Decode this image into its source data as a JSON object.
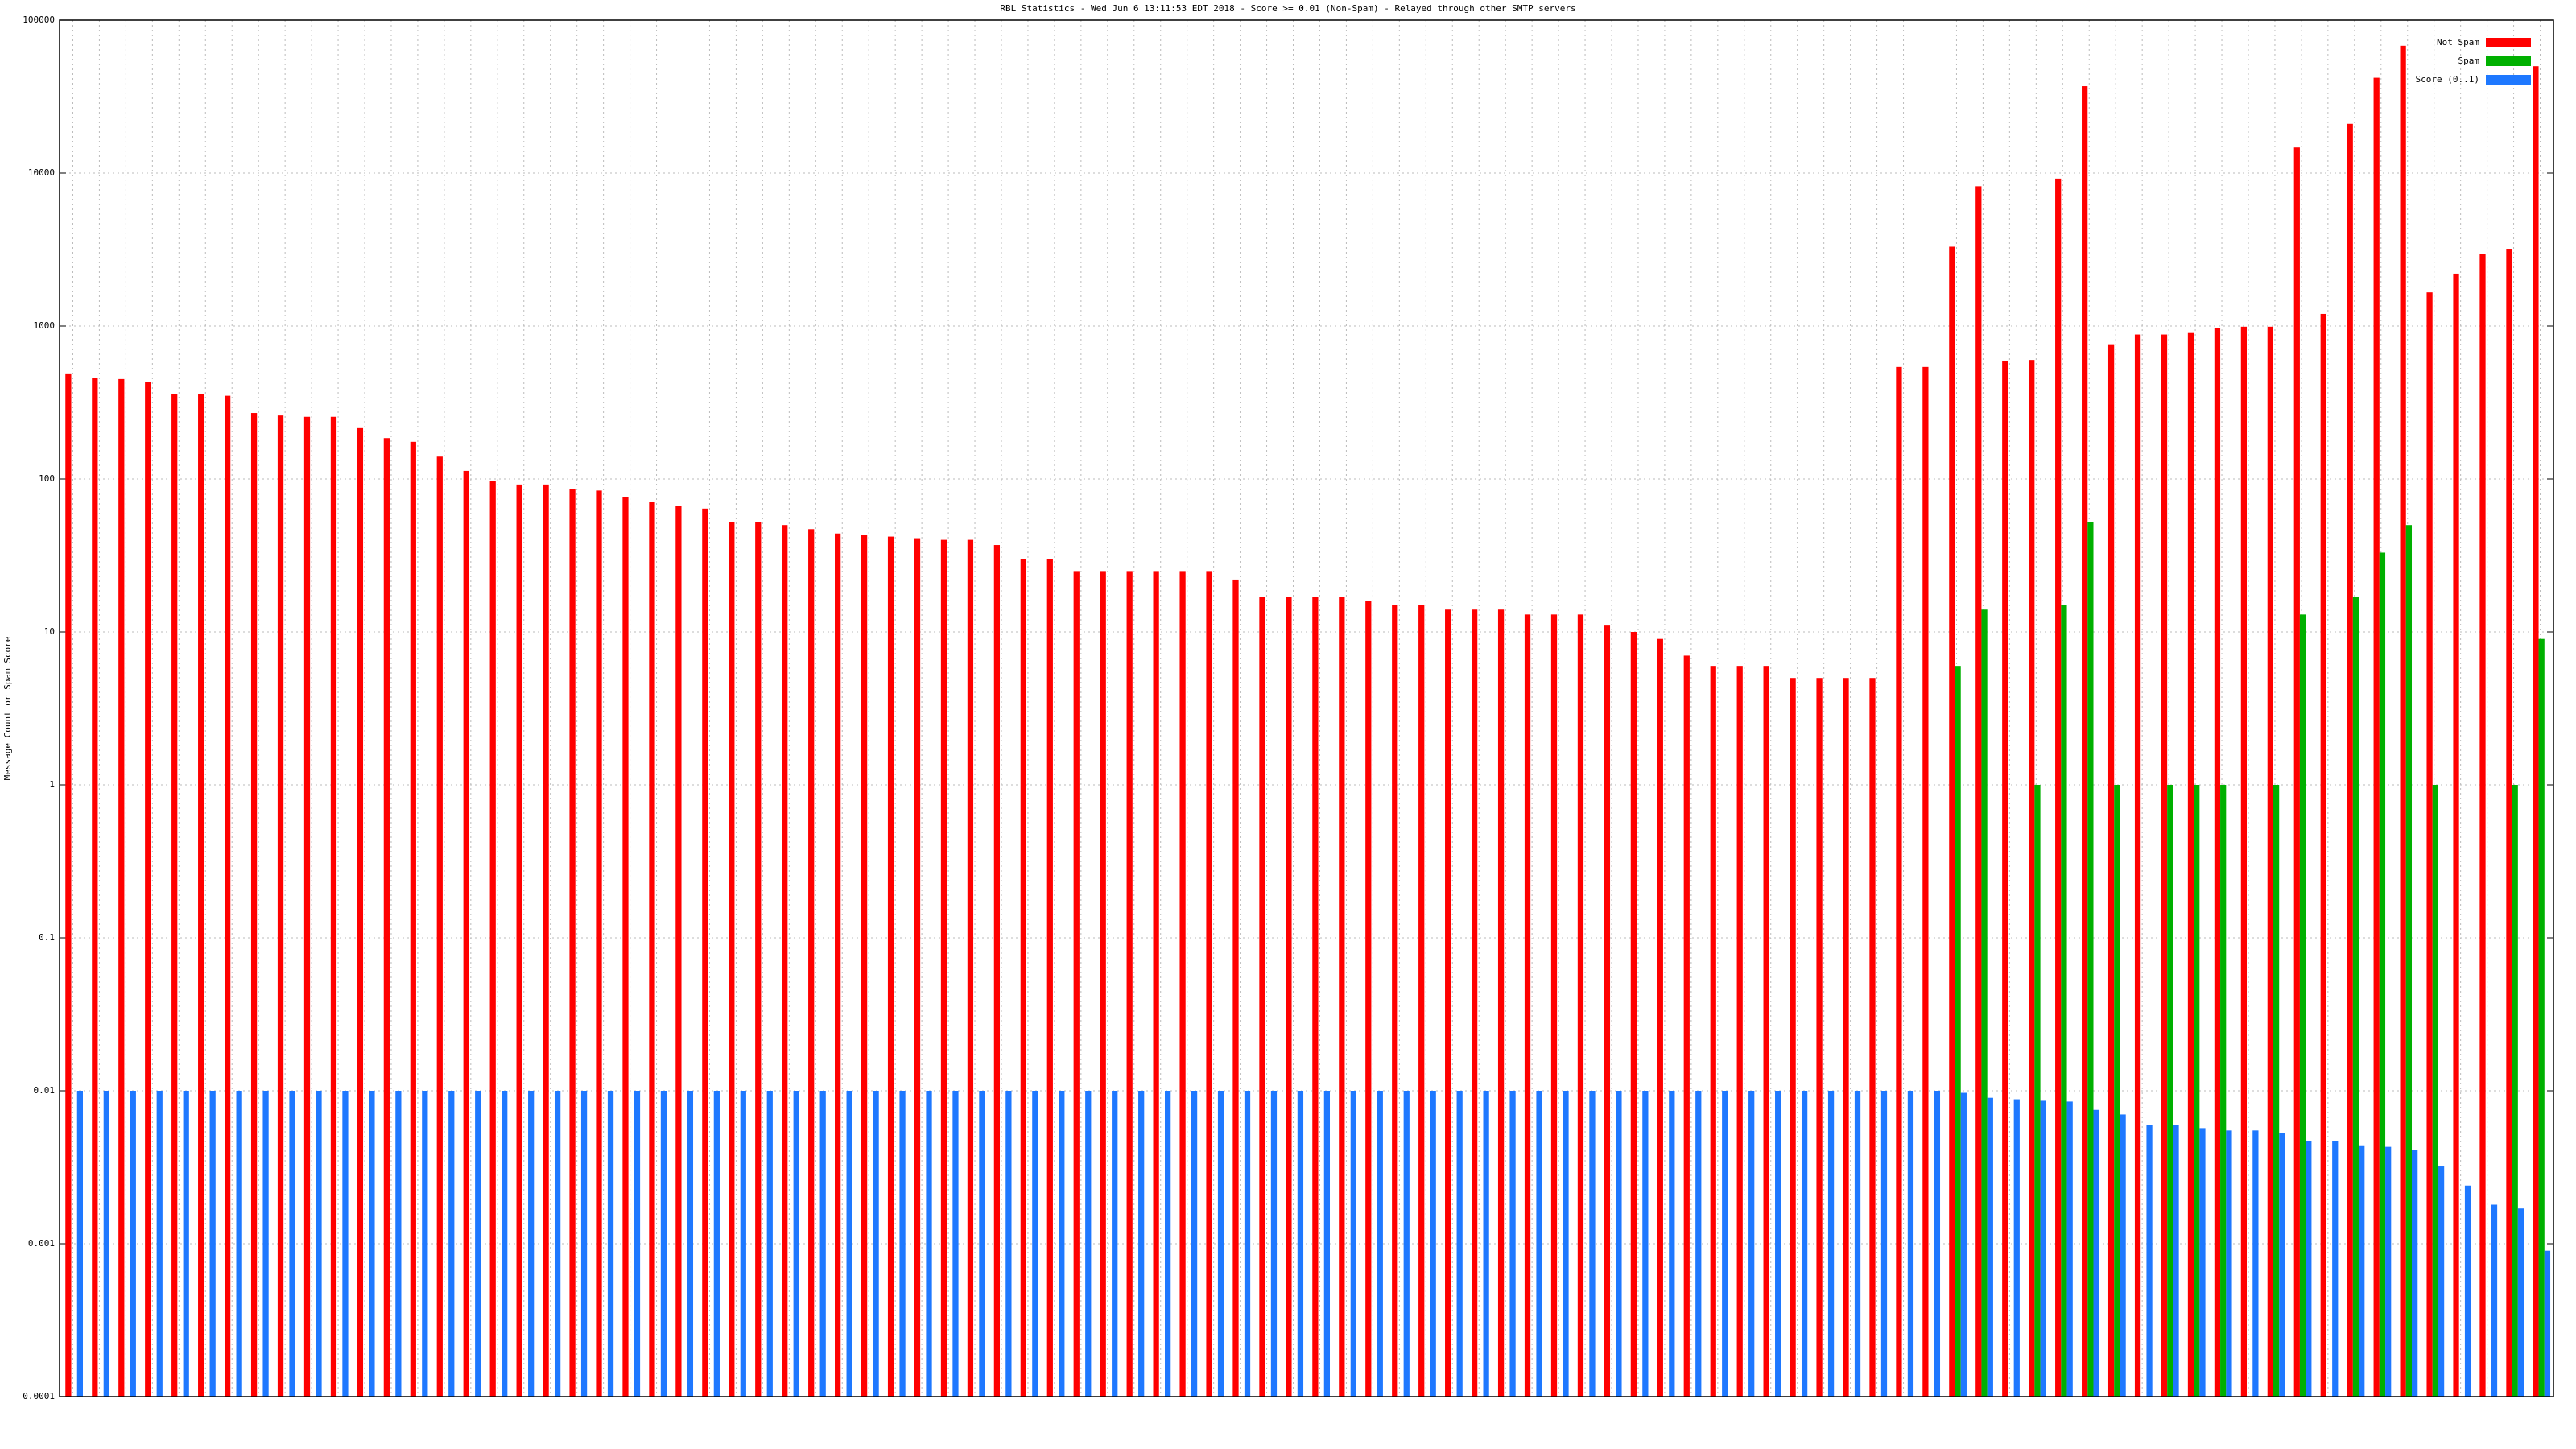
{
  "chart_data": {
    "type": "bar",
    "title": "RBL Statistics - Wed Jun 6 13:11:53 EDT 2018 - Score >= 0.01 (Non-Spam) - Relayed through other SMTP servers",
    "y_label": "Message Count or Spam Score",
    "log_scale": true,
    "grid": true,
    "legend": "top-right",
    "ylim": [
      0.0001,
      100000
    ],
    "yticks": [
      0.0001,
      0.001,
      0.01,
      0.1,
      1,
      10,
      100,
      1000,
      10000,
      100000
    ],
    "categories": [
      null,
      null,
      null,
      null,
      null,
      null,
      null,
      null,
      null,
      null,
      null,
      null,
      null,
      null,
      null,
      null,
      null,
      null,
      null,
      null,
      null,
      null,
      null,
      null,
      null,
      null,
      null,
      null,
      null,
      null,
      null,
      null,
      null,
      null,
      null,
      null,
      null,
      null,
      null,
      null,
      null,
      null,
      null,
      null,
      null,
      null,
      null,
      null,
      null,
      null,
      null,
      null,
      null,
      null,
      null,
      null,
      null,
      null,
      null,
      null,
      null,
      null,
      null,
      null,
      null,
      null,
      null,
      null,
      null,
      null,
      null,
      null,
      null,
      null,
      null,
      null,
      null,
      null,
      null,
      null,
      null,
      null,
      null,
      null,
      null,
      null,
      null,
      null,
      null,
      null,
      null,
      null,
      null,
      null
    ],
    "series": [
      {
        "name": "Not Spam",
        "color": "#ff0000",
        "values": [
          490,
          460,
          450,
          430,
          360,
          360,
          350,
          270,
          260,
          255,
          255,
          215,
          185,
          175,
          140,
          113,
          97,
          92,
          92,
          86,
          84,
          76,
          71,
          67,
          64,
          52,
          52,
          50,
          47,
          44,
          43,
          42,
          41,
          40,
          40,
          37,
          30,
          30,
          25,
          25,
          25,
          25,
          25,
          25,
          22,
          17,
          17,
          17,
          17,
          16,
          15,
          15,
          14,
          14,
          14,
          13,
          13,
          13,
          11,
          10,
          9,
          7,
          6,
          6,
          6,
          5,
          5,
          5,
          5,
          540,
          540,
          3300,
          8200,
          590,
          600,
          9200,
          37000,
          760,
          880,
          880,
          900,
          970,
          990,
          990,
          14700,
          1200,
          21000,
          42000,
          68000,
          1660,
          2200,
          2950,
          3200,
          50000
        ]
      },
      {
        "name": "Spam",
        "color": "#00b000",
        "values": [
          null,
          null,
          null,
          null,
          null,
          null,
          null,
          null,
          null,
          null,
          null,
          null,
          null,
          null,
          null,
          null,
          null,
          null,
          null,
          null,
          null,
          null,
          null,
          null,
          null,
          null,
          null,
          null,
          null,
          null,
          null,
          null,
          null,
          null,
          null,
          null,
          null,
          null,
          null,
          null,
          null,
          null,
          null,
          null,
          null,
          null,
          null,
          null,
          null,
          null,
          null,
          null,
          null,
          null,
          null,
          null,
          null,
          null,
          null,
          null,
          null,
          null,
          null,
          null,
          null,
          null,
          null,
          null,
          null,
          null,
          null,
          6,
          14,
          null,
          1,
          15,
          52,
          1,
          null,
          1,
          1,
          1,
          null,
          1,
          13,
          null,
          17,
          33,
          50,
          1,
          null,
          null,
          1,
          9
        ]
      },
      {
        "name": "Score (0..1)",
        "color": "#1e78ff",
        "values": [
          0.01,
          0.01,
          0.01,
          0.01,
          0.01,
          0.01,
          0.01,
          0.01,
          0.01,
          0.01,
          0.01,
          0.01,
          0.01,
          0.01,
          0.01,
          0.01,
          0.01,
          0.01,
          0.01,
          0.01,
          0.01,
          0.01,
          0.01,
          0.01,
          0.01,
          0.01,
          0.01,
          0.01,
          0.01,
          0.01,
          0.01,
          0.01,
          0.01,
          0.01,
          0.01,
          0.01,
          0.01,
          0.01,
          0.01,
          0.01,
          0.01,
          0.01,
          0.01,
          0.01,
          0.01,
          0.01,
          0.01,
          0.01,
          0.01,
          0.01,
          0.01,
          0.01,
          0.01,
          0.01,
          0.01,
          0.01,
          0.01,
          0.01,
          0.01,
          0.01,
          0.01,
          0.01,
          0.01,
          0.01,
          0.01,
          0.01,
          0.01,
          0.01,
          0.01,
          0.01,
          0.01,
          0.0097,
          0.009,
          0.0088,
          0.0086,
          0.0085,
          0.0075,
          0.007,
          0.006,
          0.006,
          0.0057,
          0.0055,
          0.0055,
          0.0053,
          0.0047,
          0.0047,
          0.0044,
          0.0043,
          0.0041,
          0.0032,
          0.0024,
          0.0018,
          0.0017,
          0.0009
        ]
      }
    ]
  }
}
